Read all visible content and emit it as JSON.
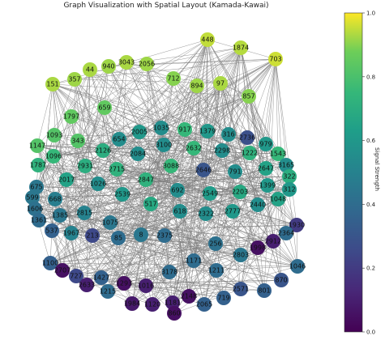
{
  "title": "Graph Visualization with Spatial Layout (Kamada-Kawai)",
  "colorbar": {
    "label": "Signal Strength",
    "min": 0.0,
    "max": 1.0,
    "ticks": [
      "0.0",
      "0.2",
      "0.4",
      "0.6",
      "0.8",
      "1.0"
    ],
    "colormap": "viridis"
  },
  "edge_color": "#808080",
  "nodes": [
    {
      "id": "448",
      "v": 0.95
    },
    {
      "id": "1874",
      "v": 0.94
    },
    {
      "id": "703",
      "v": 0.96
    },
    {
      "id": "44",
      "v": 0.93
    },
    {
      "id": "940",
      "v": 0.92
    },
    {
      "id": "3043",
      "v": 0.93
    },
    {
      "id": "2056",
      "v": 0.92
    },
    {
      "id": "151",
      "v": 0.93
    },
    {
      "id": "357",
      "v": 0.92
    },
    {
      "id": "712",
      "v": 0.9
    },
    {
      "id": "894",
      "v": 0.92
    },
    {
      "id": "97",
      "v": 0.93
    },
    {
      "id": "857",
      "v": 0.9
    },
    {
      "id": "659",
      "v": 0.85
    },
    {
      "id": "1797",
      "v": 0.85
    },
    {
      "id": "1093",
      "v": 0.82
    },
    {
      "id": "2005",
      "v": 0.6
    },
    {
      "id": "1035",
      "v": 0.55
    },
    {
      "id": "917",
      "v": 0.75
    },
    {
      "id": "1379",
      "v": 0.6
    },
    {
      "id": "316",
      "v": 0.55
    },
    {
      "id": "2736",
      "v": 0.28
    },
    {
      "id": "1147",
      "v": 0.82
    },
    {
      "id": "343",
      "v": 0.82
    },
    {
      "id": "654",
      "v": 0.55
    },
    {
      "id": "3100",
      "v": 0.55
    },
    {
      "id": "2632",
      "v": 0.75
    },
    {
      "id": "2298",
      "v": 0.55
    },
    {
      "id": "1222",
      "v": 0.72
    },
    {
      "id": "979",
      "v": 0.6
    },
    {
      "id": "1543",
      "v": 0.75
    },
    {
      "id": "1096",
      "v": 0.75
    },
    {
      "id": "2126",
      "v": 0.7
    },
    {
      "id": "2084",
      "v": 0.55
    },
    {
      "id": "3165",
      "v": 0.55
    },
    {
      "id": "1787",
      "v": 0.72
    },
    {
      "id": "2931",
      "v": 0.7
    },
    {
      "id": "2715",
      "v": 0.72
    },
    {
      "id": "3088",
      "v": 0.75
    },
    {
      "id": "2646",
      "v": 0.3
    },
    {
      "id": "791",
      "v": 0.55
    },
    {
      "id": "2647",
      "v": 0.65
    },
    {
      "id": "322",
      "v": 0.7
    },
    {
      "id": "2017",
      "v": 0.65
    },
    {
      "id": "1026",
      "v": 0.55
    },
    {
      "id": "2847",
      "v": 0.72
    },
    {
      "id": "1399",
      "v": 0.6
    },
    {
      "id": "312",
      "v": 0.6
    },
    {
      "id": "675",
      "v": 0.45
    },
    {
      "id": "692",
      "v": 0.55
    },
    {
      "id": "2549",
      "v": 0.62
    },
    {
      "id": "2203",
      "v": 0.68
    },
    {
      "id": "1048",
      "v": 0.65
    },
    {
      "id": "599",
      "v": 0.45
    },
    {
      "id": "668",
      "v": 0.48
    },
    {
      "id": "2539",
      "v": 0.6
    },
    {
      "id": "517",
      "v": 0.68
    },
    {
      "id": "2440",
      "v": 0.55
    },
    {
      "id": "1606",
      "v": 0.42
    },
    {
      "id": "2815",
      "v": 0.5
    },
    {
      "id": "618",
      "v": 0.55
    },
    {
      "id": "2322",
      "v": 0.55
    },
    {
      "id": "2777",
      "v": 0.6
    },
    {
      "id": "1385",
      "v": 0.45
    },
    {
      "id": "1361",
      "v": 0.4
    },
    {
      "id": "1075",
      "v": 0.45
    },
    {
      "id": "1930",
      "v": 0.2
    },
    {
      "id": "537",
      "v": 0.35
    },
    {
      "id": "1967",
      "v": 0.5
    },
    {
      "id": "213",
      "v": 0.25
    },
    {
      "id": "85",
      "v": 0.4
    },
    {
      "id": "8",
      "v": 0.45
    },
    {
      "id": "2375",
      "v": 0.4
    },
    {
      "id": "2364",
      "v": 0.4
    },
    {
      "id": "256",
      "v": 0.42
    },
    {
      "id": "2912",
      "v": 0.1
    },
    {
      "id": "1998",
      "v": 0.05
    },
    {
      "id": "2803",
      "v": 0.45
    },
    {
      "id": "1100",
      "v": 0.35
    },
    {
      "id": "1171",
      "v": 0.4
    },
    {
      "id": "1046",
      "v": 0.4
    },
    {
      "id": "2707",
      "v": 0.05
    },
    {
      "id": "3178",
      "v": 0.4
    },
    {
      "id": "1211",
      "v": 0.4
    },
    {
      "id": "727",
      "v": 0.25
    },
    {
      "id": "1427",
      "v": 0.35
    },
    {
      "id": "870",
      "v": 0.3
    },
    {
      "id": "2633",
      "v": 0.1
    },
    {
      "id": "1215",
      "v": 0.4
    },
    {
      "id": "1293",
      "v": 0.05
    },
    {
      "id": "1016",
      "v": 0.1
    },
    {
      "id": "2571",
      "v": 0.3
    },
    {
      "id": "801",
      "v": 0.35
    },
    {
      "id": "2148",
      "v": 0.05
    },
    {
      "id": "719",
      "v": 0.35
    },
    {
      "id": "1984",
      "v": 0.08
    },
    {
      "id": "1120",
      "v": 0.1
    },
    {
      "id": "1181",
      "v": 0.1
    },
    {
      "id": "2065",
      "v": 0.35
    },
    {
      "id": "860",
      "v": 0.05
    }
  ]
}
